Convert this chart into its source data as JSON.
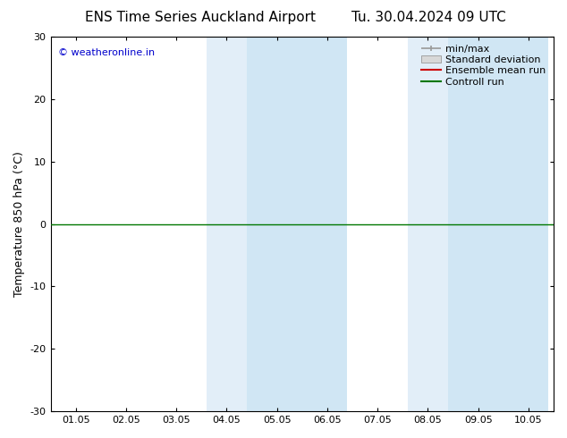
{
  "title_left": "ENS Time Series Auckland Airport",
  "title_right": "Tu. 30.04.2024 09 UTC",
  "ylabel": "Temperature 850 hPa (°C)",
  "ylim": [
    -30,
    30
  ],
  "yticks": [
    -30,
    -20,
    -10,
    0,
    10,
    20,
    30
  ],
  "xtick_labels": [
    "01.05",
    "02.05",
    "03.05",
    "04.05",
    "05.05",
    "06.05",
    "07.05",
    "08.05",
    "09.05",
    "10.05"
  ],
  "x_values": [
    1,
    2,
    3,
    4,
    5,
    6,
    7,
    8,
    9,
    10
  ],
  "xlim_left": 0.5,
  "xlim_right": 10.5,
  "shade_regions": [
    {
      "xmin": 3.5,
      "xmax": 4.5
    },
    {
      "xmin": 4.5,
      "xmax": 6.5
    },
    {
      "xmin": 7.5,
      "xmax": 8.5
    },
    {
      "xmin": 8.5,
      "xmax": 10.5
    }
  ],
  "shade_colors": [
    "#ddeef8",
    "#ddeef8",
    "#ddeef8",
    "#ddeef8"
  ],
  "shade_alphas": [
    0.5,
    1.0,
    0.5,
    1.0
  ],
  "constant_value": 0.0,
  "green_line_color": "#007700",
  "red_line_color": "#cc0000",
  "background_color": "#ffffff",
  "watermark_text": "© weatheronline.in",
  "watermark_color": "#0000cc",
  "watermark_fontsize": 8,
  "title_fontsize": 11,
  "legend_fontsize": 8,
  "axis_fontsize": 9,
  "tick_fontsize": 8,
  "minmax_line_color": "#999999",
  "std_fill_color": "#cccccc",
  "spine_color": "#000000",
  "legend_labels": [
    "min/max",
    "Standard deviation",
    "Ensemble mean run",
    "Controll run"
  ],
  "legend_line_colors": [
    "#999999",
    "#cccccc",
    "#cc0000",
    "#007700"
  ]
}
